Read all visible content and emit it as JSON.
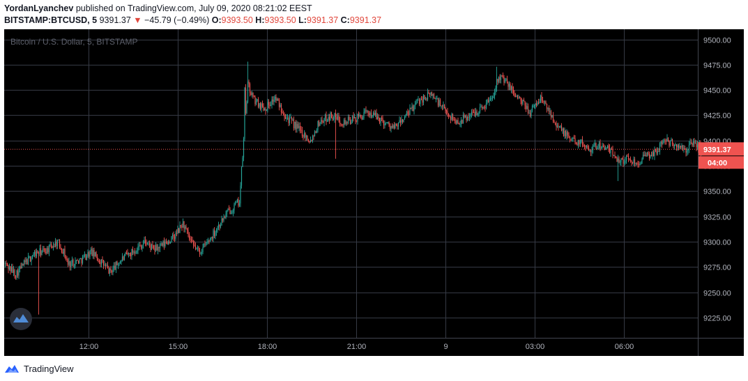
{
  "header": {
    "author": "YordanLyanchev",
    "published_text": " published on TradingView.com, July 09, 2020 08:21:02 EEST",
    "symbol": "BITSTAMP:BTCUSD, 5",
    "last_price": "9391.37",
    "change_arrow": "▼",
    "change": "−45.79 (−0.49%)",
    "o_label": "O:",
    "o_value": "9393.50",
    "h_label": "H:",
    "h_value": "9393.50",
    "l_label": "L:",
    "l_value": "9391.37",
    "c_label": "C:",
    "c_value": "9391.37"
  },
  "chart_data": {
    "type": "candlestick",
    "title": "Bitcoin / U.S. Dollar, 5, BITSTAMP",
    "x_tick_labels": [
      "12:00",
      "15:00",
      "18:00",
      "21:00",
      "9",
      "03:00",
      "06:00"
    ],
    "y_tick_labels": [
      "9500.00",
      "9475.00",
      "9450.00",
      "9425.00",
      "9400.00",
      "9375.00",
      "9350.00",
      "9325.00",
      "9300.00",
      "9275.00",
      "9250.00",
      "9225.00"
    ],
    "ylim": [
      9205,
      9510
    ],
    "last_price_label": "9391.37",
    "countdown_label": "04:00",
    "grid": true,
    "colors": {
      "up": "#26a69a",
      "down": "#ef5350",
      "background": "#000000",
      "grid": "#363a45",
      "price_line": "#ef5350"
    },
    "price_path": [
      {
        "t": 0,
        "p": 9278
      },
      {
        "t": 10,
        "p": 9268
      },
      {
        "t": 18,
        "p": 9278
      },
      {
        "t": 28,
        "p": 9288
      },
      {
        "t": 40,
        "p": 9292
      },
      {
        "t": 50,
        "p": 9300
      },
      {
        "t": 56,
        "p": 9290
      },
      {
        "t": 60,
        "p": 9278
      },
      {
        "t": 72,
        "p": 9282
      },
      {
        "t": 82,
        "p": 9290
      },
      {
        "t": 92,
        "p": 9280
      },
      {
        "t": 100,
        "p": 9270
      },
      {
        "t": 112,
        "p": 9283
      },
      {
        "t": 124,
        "p": 9292
      },
      {
        "t": 134,
        "p": 9300
      },
      {
        "t": 142,
        "p": 9292
      },
      {
        "t": 150,
        "p": 9296
      },
      {
        "t": 162,
        "p": 9305
      },
      {
        "t": 170,
        "p": 9318
      },
      {
        "t": 178,
        "p": 9298
      },
      {
        "t": 186,
        "p": 9290
      },
      {
        "t": 194,
        "p": 9300
      },
      {
        "t": 204,
        "p": 9316
      },
      {
        "t": 212,
        "p": 9328
      },
      {
        "t": 224,
        "p": 9340
      },
      {
        "t": 228,
        "p": 9400
      },
      {
        "t": 232,
        "p": 9455
      },
      {
        "t": 238,
        "p": 9440
      },
      {
        "t": 248,
        "p": 9432
      },
      {
        "t": 258,
        "p": 9442
      },
      {
        "t": 270,
        "p": 9422
      },
      {
        "t": 280,
        "p": 9412
      },
      {
        "t": 292,
        "p": 9400
      },
      {
        "t": 300,
        "p": 9418
      },
      {
        "t": 312,
        "p": 9425
      },
      {
        "t": 324,
        "p": 9418
      },
      {
        "t": 336,
        "p": 9422
      },
      {
        "t": 348,
        "p": 9428
      },
      {
        "t": 360,
        "p": 9420
      },
      {
        "t": 372,
        "p": 9412
      },
      {
        "t": 384,
        "p": 9425
      },
      {
        "t": 396,
        "p": 9440
      },
      {
        "t": 408,
        "p": 9446
      },
      {
        "t": 420,
        "p": 9430
      },
      {
        "t": 432,
        "p": 9418
      },
      {
        "t": 444,
        "p": 9425
      },
      {
        "t": 456,
        "p": 9432
      },
      {
        "t": 466,
        "p": 9444
      },
      {
        "t": 472,
        "p": 9465
      },
      {
        "t": 480,
        "p": 9456
      },
      {
        "t": 492,
        "p": 9440
      },
      {
        "t": 502,
        "p": 9428
      },
      {
        "t": 512,
        "p": 9442
      },
      {
        "t": 520,
        "p": 9430
      },
      {
        "t": 530,
        "p": 9412
      },
      {
        "t": 540,
        "p": 9402
      },
      {
        "t": 550,
        "p": 9398
      },
      {
        "t": 560,
        "p": 9392
      },
      {
        "t": 568,
        "p": 9396
      },
      {
        "t": 578,
        "p": 9390
      },
      {
        "t": 588,
        "p": 9380
      },
      {
        "t": 596,
        "p": 9382
      },
      {
        "t": 604,
        "p": 9378
      },
      {
        "t": 612,
        "p": 9384
      },
      {
        "t": 622,
        "p": 9388
      },
      {
        "t": 630,
        "p": 9401
      },
      {
        "t": 640,
        "p": 9396
      },
      {
        "t": 650,
        "p": 9390
      },
      {
        "t": 658,
        "p": 9398
      },
      {
        "t": 666,
        "p": 9391.37
      }
    ],
    "spikes": [
      {
        "t": 32,
        "low": 9228
      },
      {
        "t": 232,
        "high": 9478
      },
      {
        "t": 316,
        "low": 9382
      },
      {
        "t": 470,
        "high": 9473
      },
      {
        "t": 586,
        "low": 9360
      }
    ]
  },
  "footer": {
    "brand": "TradingView"
  }
}
